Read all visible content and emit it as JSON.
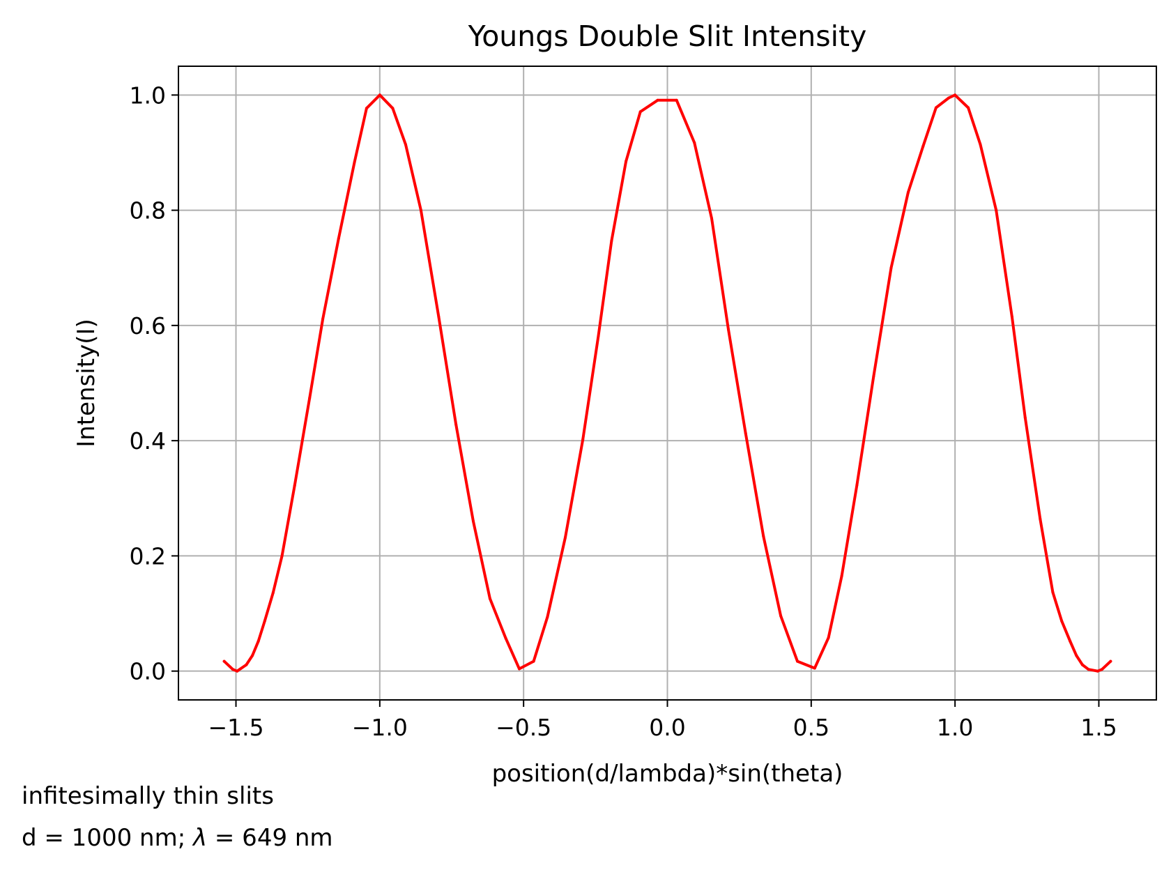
{
  "chart_data": {
    "type": "line",
    "title": "Youngs Double Slit Intensity",
    "xlabel": "position(d/lambda)*sin(theta)",
    "ylabel": "Intensity(I)",
    "xlim": [
      -1.7,
      1.7
    ],
    "ylim": [
      -0.05,
      1.05
    ],
    "xticks": [
      -1.5,
      -1.0,
      -0.5,
      0.0,
      0.5,
      1.0,
      1.5
    ],
    "xtick_labels": [
      "−1.5",
      "−1.0",
      "−0.5",
      "0.0",
      "0.5",
      "1.0",
      "1.5"
    ],
    "yticks": [
      0.0,
      0.2,
      0.4,
      0.6,
      0.8,
      1.0
    ],
    "ytick_labels": [
      "0.0",
      "0.2",
      "0.4",
      "0.6",
      "0.8",
      "1.0"
    ],
    "grid": true,
    "series": [
      {
        "name": "intensity",
        "color": "#ff0000",
        "x": [
          -1.541,
          -1.511,
          -1.496,
          -1.464,
          -1.443,
          -1.422,
          -1.4,
          -1.371,
          -1.34,
          -1.296,
          -1.244,
          -1.198,
          -1.143,
          -1.088,
          -1.046,
          -1.0,
          -0.955,
          -0.91,
          -0.857,
          -0.795,
          -0.735,
          -0.675,
          -0.617,
          -0.562,
          -0.515,
          -0.465,
          -0.417,
          -0.355,
          -0.294,
          -0.24,
          -0.194,
          -0.144,
          -0.094,
          -0.034,
          0.032,
          0.094,
          0.154,
          0.212,
          0.272,
          0.334,
          0.394,
          0.452,
          0.512,
          0.56,
          0.606,
          0.659,
          0.717,
          0.778,
          0.837,
          0.889,
          0.934,
          0.978,
          1.0,
          1.046,
          1.088,
          1.143,
          1.198,
          1.244,
          1.296,
          1.34,
          1.371,
          1.4,
          1.422,
          1.443,
          1.464,
          1.496,
          1.511,
          1.541
        ],
        "values": [
          0.017,
          0.003,
          0.0,
          0.011,
          0.027,
          0.052,
          0.087,
          0.136,
          0.2,
          0.322,
          0.474,
          0.611,
          0.751,
          0.883,
          0.977,
          1.0,
          0.977,
          0.914,
          0.8,
          0.615,
          0.428,
          0.26,
          0.126,
          0.057,
          0.004,
          0.017,
          0.094,
          0.232,
          0.402,
          0.582,
          0.747,
          0.885,
          0.971,
          0.991,
          0.991,
          0.917,
          0.786,
          0.593,
          0.413,
          0.234,
          0.096,
          0.017,
          0.005,
          0.058,
          0.165,
          0.323,
          0.512,
          0.7,
          0.831,
          0.911,
          0.978,
          0.995,
          1.0,
          0.978,
          0.914,
          0.8,
          0.615,
          0.44,
          0.264,
          0.137,
          0.087,
          0.052,
          0.027,
          0.011,
          0.003,
          0.0,
          0.003,
          0.017
        ]
      }
    ]
  },
  "annotation": {
    "line1": "infitesimally thin slits",
    "line2_prefix": "d = 1000 nm; ",
    "line2_lambda": "λ",
    "line2_suffix": " = 649 nm"
  }
}
